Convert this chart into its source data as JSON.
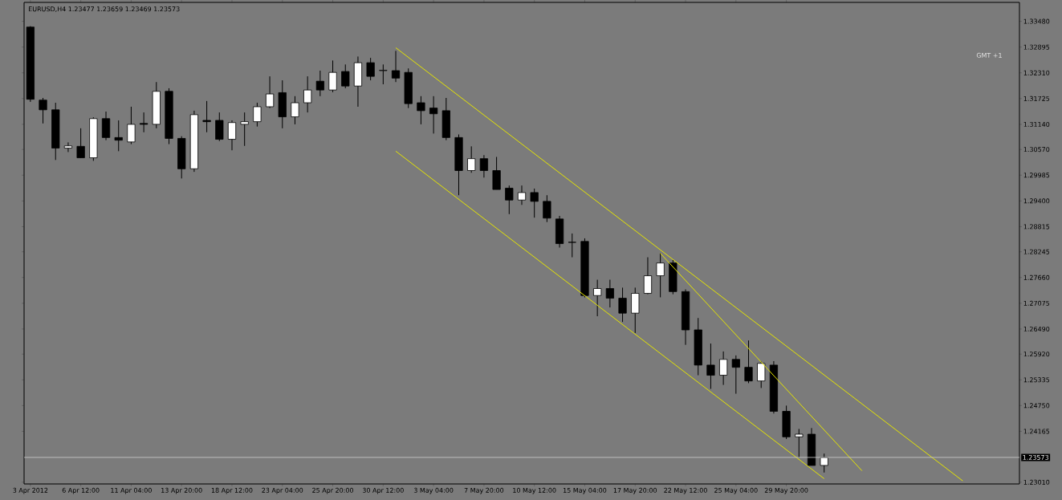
{
  "chart_data": {
    "type": "candlestick",
    "title": "EURUSD,H4  1.23477 1.23659 1.23469 1.23573",
    "annotations": [
      "GMT +1"
    ],
    "categories": [
      "3 Apr 2012",
      null,
      null,
      null,
      "6 Apr 12:00",
      null,
      null,
      null,
      "11 Apr 04:00",
      null,
      null,
      null,
      "13 Apr 20:00",
      null,
      null,
      null,
      "18 Apr 12:00",
      null,
      null,
      null,
      "23 Apr 04:00",
      null,
      null,
      null,
      "25 Apr 20:00",
      null,
      null,
      null,
      "30 Apr 12:00",
      null,
      null,
      null,
      "3 May 04:00",
      null,
      null,
      null,
      "7 May 20:00",
      null,
      null,
      null,
      "10 May 12:00",
      null,
      null,
      null,
      "15 May 04:00",
      null,
      null,
      null,
      "17 May 20:00",
      null,
      null,
      null,
      "22 May 12:00",
      null,
      null,
      null,
      "25 May 04:00",
      null,
      null,
      null,
      "29 May 20:00",
      null,
      null,
      null,
      null,
      null,
      null,
      null,
      null,
      null,
      null,
      null,
      null,
      null,
      null,
      null,
      null,
      null,
      null
    ],
    "ohlc": [
      [
        1.3335,
        1.3337,
        1.3165,
        1.3171
      ],
      [
        1.3169,
        1.3174,
        1.3116,
        1.3147
      ],
      [
        1.3147,
        1.3163,
        1.3033,
        1.306
      ],
      [
        1.306,
        1.3073,
        1.3051,
        1.3065
      ],
      [
        1.3064,
        1.3105,
        1.3038,
        1.3038
      ],
      [
        1.3038,
        1.313,
        1.3031,
        1.3127
      ],
      [
        1.3127,
        1.3143,
        1.3078,
        1.3084
      ],
      [
        1.3084,
        1.3123,
        1.3053,
        1.3078
      ],
      [
        1.3074,
        1.3154,
        1.3069,
        1.3114
      ],
      [
        1.3116,
        1.3141,
        1.3096,
        1.3114
      ],
      [
        1.3114,
        1.321,
        1.3105,
        1.3189
      ],
      [
        1.3189,
        1.3196,
        1.3069,
        1.3082
      ],
      [
        1.3082,
        1.3087,
        1.2991,
        1.3013
      ],
      [
        1.3013,
        1.3145,
        1.3006,
        1.3136
      ],
      [
        1.3123,
        1.3167,
        1.3096,
        1.312
      ],
      [
        1.3123,
        1.3141,
        1.3076,
        1.308
      ],
      [
        1.308,
        1.3123,
        1.3055,
        1.3118
      ],
      [
        1.3114,
        1.3141,
        1.3065,
        1.312
      ],
      [
        1.312,
        1.3163,
        1.3109,
        1.3154
      ],
      [
        1.3154,
        1.3223,
        1.3151,
        1.3183
      ],
      [
        1.3186,
        1.3214,
        1.3105,
        1.3131
      ],
      [
        1.3131,
        1.3178,
        1.3114,
        1.3163
      ],
      [
        1.3163,
        1.3223,
        1.3141,
        1.3192
      ],
      [
        1.3212,
        1.3236,
        1.3178,
        1.3192
      ],
      [
        1.3192,
        1.3259,
        1.3187,
        1.3232
      ],
      [
        1.3234,
        1.325,
        1.3196,
        1.3201
      ],
      [
        1.3201,
        1.3268,
        1.3154,
        1.3254
      ],
      [
        1.3254,
        1.3265,
        1.3214,
        1.3223
      ],
      [
        1.3236,
        1.325,
        1.3205,
        1.3237
      ],
      [
        1.3236,
        1.3281,
        1.321,
        1.3219
      ],
      [
        1.3232,
        1.3241,
        1.3151,
        1.3161
      ],
      [
        1.3163,
        1.3178,
        1.3114,
        1.3145
      ],
      [
        1.3151,
        1.3178,
        1.3093,
        1.3138
      ],
      [
        1.3145,
        1.3174,
        1.3078,
        1.3084
      ],
      [
        1.3084,
        1.3091,
        1.2953,
        1.3009
      ],
      [
        1.3009,
        1.3064,
        1.3004,
        1.3036
      ],
      [
        1.3036,
        1.3044,
        1.2993,
        1.3009
      ],
      [
        1.3009,
        1.304,
        1.2966,
        1.2966
      ],
      [
        1.2969,
        1.2975,
        1.291,
        1.2942
      ],
      [
        1.2942,
        1.2975,
        1.2931,
        1.2959
      ],
      [
        1.2959,
        1.2968,
        1.2902,
        1.2939
      ],
      [
        1.2939,
        1.2953,
        1.2892,
        1.2901
      ],
      [
        1.2899,
        1.2906,
        1.2834,
        1.2843
      ],
      [
        1.2846,
        1.2866,
        1.2812,
        1.2846
      ],
      [
        1.2848,
        1.2855,
        1.2721,
        1.2725
      ],
      [
        1.2725,
        1.2761,
        1.2678,
        1.2741
      ],
      [
        1.2741,
        1.2761,
        1.2698,
        1.2719
      ],
      [
        1.2719,
        1.2743,
        1.2665,
        1.2685
      ],
      [
        1.2685,
        1.2743,
        1.264,
        1.273
      ],
      [
        1.273,
        1.2812,
        1.2728,
        1.277
      ],
      [
        1.277,
        1.2821,
        1.2721,
        1.2799
      ],
      [
        1.2799,
        1.2806,
        1.2728,
        1.2734
      ],
      [
        1.2734,
        1.2739,
        1.2613,
        1.2647
      ],
      [
        1.2647,
        1.2674,
        1.2544,
        1.2567
      ],
      [
        1.2567,
        1.2616,
        1.2513,
        1.2544
      ],
      [
        1.2544,
        1.2598,
        1.2522,
        1.258
      ],
      [
        1.258,
        1.2589,
        1.2502,
        1.2562
      ],
      [
        1.2562,
        1.2623,
        1.2526,
        1.2531
      ],
      [
        1.2531,
        1.2575,
        1.2515,
        1.2571
      ],
      [
        1.2567,
        1.2576,
        1.2457,
        1.2462
      ],
      [
        1.2462,
        1.2475,
        1.2399,
        1.2404
      ],
      [
        1.2404,
        1.2422,
        1.2357,
        1.241
      ],
      [
        1.241,
        1.2424,
        1.2339,
        1.2339
      ],
      [
        1.2339,
        1.2366,
        1.2323,
        1.2357
      ],
      null,
      null,
      null,
      null,
      null,
      null,
      null,
      null,
      null,
      null,
      null,
      null,
      null,
      null,
      null
    ],
    "series": [
      {
        "type": "line",
        "color": "#e6e600",
        "values": [
          null,
          null,
          null,
          null,
          null,
          null,
          null,
          null,
          null,
          null,
          null,
          null,
          null,
          null,
          null,
          null,
          null,
          null,
          null,
          null,
          null,
          null,
          null,
          null,
          null,
          null,
          null,
          null,
          null,
          1.3288,
          null,
          null,
          null,
          null,
          null,
          null,
          null,
          null,
          null,
          null,
          null,
          null,
          null,
          null,
          null,
          null,
          null,
          null,
          null,
          null,
          null,
          null,
          null,
          null,
          null,
          null,
          null,
          null,
          null,
          null,
          null,
          null,
          null,
          null,
          null,
          null,
          null,
          null,
          null,
          null,
          null,
          null,
          null,
          null,
          1.2304,
          null,
          null,
          null,
          null
        ]
      },
      {
        "type": "line",
        "color": "#e6e600",
        "values": [
          null,
          null,
          null,
          null,
          null,
          null,
          null,
          null,
          null,
          null,
          null,
          null,
          null,
          null,
          null,
          null,
          null,
          null,
          null,
          null,
          null,
          null,
          null,
          null,
          null,
          null,
          null,
          null,
          null,
          1.3053,
          null,
          null,
          null,
          null,
          null,
          null,
          null,
          null,
          null,
          null,
          null,
          null,
          null,
          null,
          null,
          null,
          null,
          null,
          null,
          null,
          null,
          null,
          null,
          null,
          null,
          null,
          null,
          null,
          null,
          null,
          null,
          null,
          null,
          1.2309,
          null,
          null,
          null,
          null,
          null,
          null,
          null,
          null,
          null,
          null,
          null,
          null,
          null,
          null,
          null
        ]
      },
      {
        "type": "line",
        "color": "#e6e600",
        "values": [
          null,
          null,
          null,
          null,
          null,
          null,
          null,
          null,
          null,
          null,
          null,
          null,
          null,
          null,
          null,
          null,
          null,
          null,
          null,
          null,
          null,
          null,
          null,
          null,
          null,
          null,
          null,
          null,
          null,
          null,
          null,
          null,
          null,
          null,
          null,
          null,
          null,
          null,
          null,
          null,
          null,
          null,
          null,
          null,
          null,
          null,
          null,
          null,
          null,
          null,
          1.2821,
          null,
          null,
          null,
          null,
          null,
          null,
          null,
          null,
          null,
          null,
          null,
          null,
          null,
          null,
          null,
          1.2327,
          null,
          null,
          null,
          null,
          null,
          null,
          null,
          null,
          null,
          null,
          null,
          null
        ]
      }
    ],
    "ylim": [
      1.2297,
      1.3391
    ],
    "yticks": [
      {
        "value": 1.3348,
        "label": "1.33480"
      },
      1.32895,
      {
        "value": 1.3231,
        "label": "1.32310"
      },
      1.31725,
      {
        "value": 1.3114,
        "label": "1.31140"
      },
      {
        "value": 1.3057,
        "label": "1.30570"
      },
      1.29985,
      {
        "value": 1.294,
        "label": "1.29400"
      },
      1.28815,
      1.28245,
      {
        "value": 1.2766,
        "label": "1.27660"
      },
      1.27075,
      {
        "value": 1.2649,
        "label": "1.26490"
      },
      {
        "value": 1.2592,
        "label": "1.25920"
      },
      1.25335,
      {
        "value": 1.2475,
        "label": "1.24750"
      },
      1.24165,
      {
        "value": 1.2301,
        "label": "1.23010"
      }
    ],
    "ref_lines": [
      {
        "axis": "y",
        "value": 1.23573,
        "label": "1.23573",
        "color": "#d0d0d0"
      }
    ]
  }
}
